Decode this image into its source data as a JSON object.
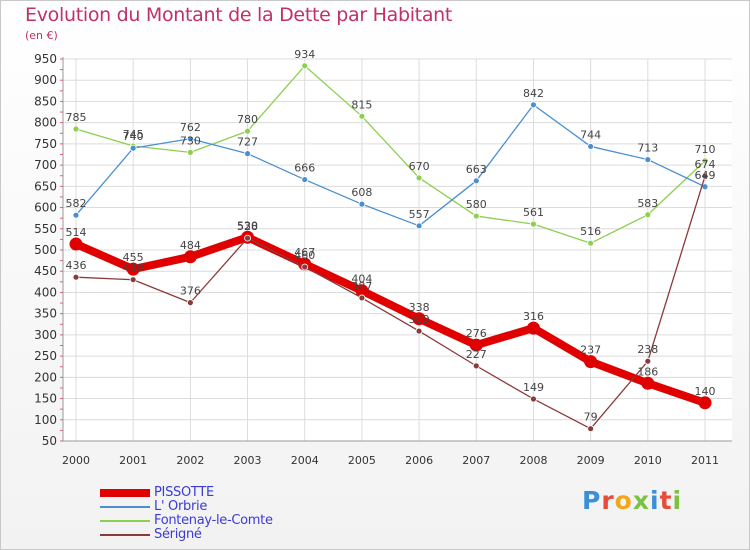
{
  "title": "Evolution du Montant de la Dette par Habitant",
  "unit_label": "(en €)",
  "logo": {
    "text": "Proxiti",
    "colors": [
      "#3a8fd8",
      "#e84b3a",
      "#f2a81d",
      "#7cc242",
      "#3a8fd8",
      "#e84b3a",
      "#7cc242"
    ]
  },
  "chart_data": {
    "type": "line",
    "x": [
      "2000",
      "2001",
      "2002",
      "2003",
      "2004",
      "2005",
      "2006",
      "2007",
      "2008",
      "2009",
      "2010",
      "2011"
    ],
    "ylim": [
      50,
      950
    ],
    "yticks": [
      50,
      100,
      150,
      200,
      250,
      300,
      350,
      400,
      450,
      500,
      550,
      600,
      650,
      700,
      750,
      800,
      850,
      900,
      950
    ],
    "grid": true,
    "legend_position": "bottom-left",
    "series": [
      {
        "name": "PISSOTTE",
        "color": "#e00000",
        "thick": true,
        "values": [
          514,
          455,
          484,
          530,
          467,
          404,
          338,
          276,
          316,
          237,
          186,
          140
        ],
        "labels": [
          "514",
          "455",
          "484",
          "530",
          "467",
          "404",
          "338",
          "276",
          "316",
          "237",
          "186",
          "140"
        ]
      },
      {
        "name": "L' Orbrie",
        "color": "#4a90d0",
        "thick": false,
        "values": [
          582,
          740,
          762,
          727,
          666,
          608,
          557,
          663,
          842,
          744,
          713,
          649
        ],
        "labels": [
          "582",
          "740",
          "762",
          "727",
          "666",
          "608",
          "557",
          "663",
          "842",
          "744",
          "713",
          "649"
        ]
      },
      {
        "name": "Fontenay-le-Comte",
        "color": "#8cd050",
        "thick": false,
        "values": [
          785,
          745,
          730,
          780,
          934,
          815,
          670,
          580,
          561,
          516,
          583,
          710
        ],
        "labels": [
          "785",
          "745",
          "730",
          "780",
          "934",
          "815",
          "670",
          "580",
          "561",
          "516",
          "583",
          "710"
        ]
      },
      {
        "name": "Sérigné",
        "color": "#8b3a3a",
        "thick": false,
        "values": [
          436,
          430,
          376,
          528,
          460,
          387,
          309,
          227,
          149,
          79,
          238,
          674
        ],
        "labels": [
          "436",
          "430",
          "376",
          "528",
          "460",
          "387",
          "309",
          "227",
          "149",
          "79",
          "238",
          "674"
        ]
      }
    ]
  }
}
